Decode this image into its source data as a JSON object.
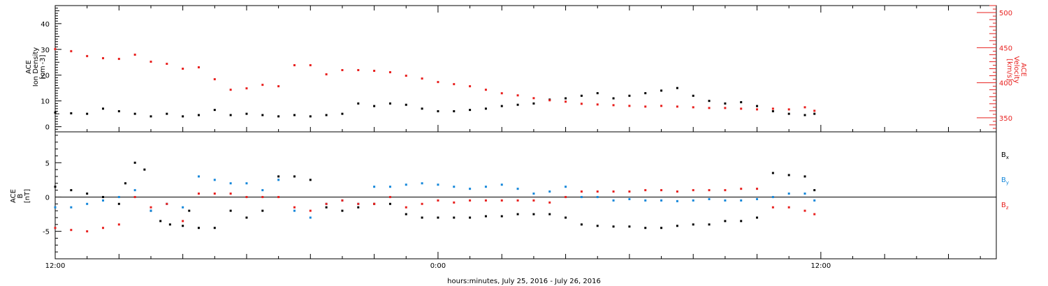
{
  "chart_data": [
    {
      "type": "scatter",
      "title": "",
      "ylabel": "ACE Ion Density [cm^-3]",
      "ylabel_lines": [
        "ACE",
        "Ion Density",
        "[cm",
        "-3",
        "]"
      ],
      "ylim": [
        -2,
        47
      ],
      "yticks": [
        0,
        10,
        20,
        30,
        40
      ],
      "y2label": "ACE Velocity [km/s]",
      "y2label_lines": [
        "ACE",
        "Velocity",
        "[km/s]"
      ],
      "y2lim": [
        330,
        510
      ],
      "y2ticks": [
        350,
        400,
        450,
        500
      ],
      "grid": false,
      "series": [
        {
          "name": "Ion Density",
          "color": "#000000",
          "axis": "left",
          "x": [
            0,
            0.5,
            1,
            1.5,
            2,
            2.5,
            3,
            3.5,
            4,
            4.5,
            5,
            5.5,
            6,
            6.5,
            7,
            7.5,
            8,
            8.5,
            9,
            9.5,
            10,
            10.5,
            11,
            11.5,
            12,
            12.5,
            13,
            13.5,
            14,
            14.5,
            15,
            15.5,
            16,
            16.5,
            17,
            17.5,
            18,
            18.5,
            19,
            19.5,
            20,
            20.5,
            21,
            21.5,
            22,
            22.5,
            23,
            23.5,
            23.8
          ],
          "y": [
            5.5,
            5.2,
            5.0,
            7.0,
            6.0,
            5.0,
            4.0,
            5.0,
            4.0,
            4.5,
            6.5,
            4.5,
            5.0,
            4.5,
            4.0,
            4.5,
            4.0,
            4.5,
            5.0,
            9.0,
            8.0,
            9.0,
            8.5,
            7.0,
            6.0,
            6.0,
            6.5,
            7.0,
            8.0,
            8.5,
            9.0,
            10.5,
            11.0,
            12.0,
            13.0,
            11.0,
            12.0,
            13.0,
            14.0,
            15.0,
            12.0,
            10.0,
            9.0,
            9.5,
            8.0,
            6.0,
            5.0,
            4.5,
            5.0
          ]
        },
        {
          "name": "Velocity",
          "color": "#e8201e",
          "axis": "right",
          "x": [
            0,
            0.5,
            1,
            1.5,
            2,
            2.5,
            3,
            3.5,
            4,
            4.5,
            5,
            5.5,
            6,
            6.5,
            7,
            7.5,
            8,
            8.5,
            9,
            9.5,
            10,
            10.5,
            11,
            11.5,
            12,
            12.5,
            13,
            13.5,
            14,
            14.5,
            15,
            15.5,
            16,
            16.5,
            17,
            17.5,
            18,
            18.5,
            19,
            19.5,
            20,
            20.5,
            21,
            21.5,
            22,
            22.5,
            23,
            23.5,
            23.8
          ],
          "y": [
            448,
            445,
            438,
            435,
            434,
            440,
            430,
            427,
            420,
            422,
            405,
            390,
            392,
            397,
            395,
            425,
            425,
            412,
            418,
            418,
            417,
            415,
            410,
            406,
            401,
            398,
            395,
            390,
            385,
            382,
            378,
            375,
            373,
            370,
            369,
            368,
            367,
            366,
            367,
            366,
            365,
            364,
            364,
            363,
            362,
            363,
            362,
            365,
            360
          ]
        }
      ]
    },
    {
      "type": "scatter",
      "title": "",
      "ylabel": "ACE B [nT]",
      "ylabel_lines": [
        "ACE",
        "B",
        "[nT]"
      ],
      "ylim": [
        -9,
        9.5
      ],
      "yticks": [
        -5,
        0,
        5
      ],
      "zero_line": true,
      "grid": false,
      "xlabel": "hours:minutes, July 25, 2016 - July 26, 2016",
      "xticks": [
        "12:00",
        "0:00",
        "12:00"
      ],
      "xtick_hours": [
        0,
        12,
        24
      ],
      "xlim_hours": [
        0,
        29.5
      ],
      "series": [
        {
          "name": "Bx",
          "legend_base": "B",
          "legend_sub": "x",
          "color": "#000000",
          "x": [
            0,
            0.5,
            1,
            1.5,
            2,
            2.2,
            2.5,
            2.8,
            3,
            3.3,
            3.6,
            4,
            4.2,
            4.5,
            5,
            5.5,
            6,
            6.5,
            7,
            7.5,
            8,
            8.5,
            9,
            9.5,
            10,
            10.5,
            11,
            11.5,
            12,
            12.5,
            13,
            13.5,
            14,
            14.5,
            15,
            15.5,
            16,
            16.5,
            17,
            17.5,
            18,
            18.5,
            19,
            19.5,
            20,
            20.5,
            21,
            21.5,
            22,
            22.5,
            23,
            23.5,
            23.8
          ],
          "y": [
            1.5,
            1.0,
            0.5,
            0.0,
            -1.0,
            2.0,
            5.0,
            4.0,
            -2.0,
            -3.5,
            -4.0,
            -4.2,
            -2.0,
            -4.5,
            -4.5,
            -2.0,
            -3.0,
            -2.0,
            3.0,
            3.0,
            2.5,
            -1.5,
            -2.0,
            -1.5,
            -1.0,
            -1.0,
            -2.5,
            -3.0,
            -3.0,
            -3.0,
            -3.0,
            -2.8,
            -2.8,
            -2.5,
            -2.5,
            -2.5,
            -3.0,
            -4.0,
            -4.2,
            -4.3,
            -4.3,
            -4.5,
            -4.5,
            -4.2,
            -4.0,
            -4.0,
            -3.5,
            -3.5,
            -3.0,
            3.5,
            3.2,
            3.0,
            1.0
          ]
        },
        {
          "name": "By",
          "legend_base": "B",
          "legend_sub": "y",
          "color": "#1487da",
          "x": [
            0,
            0.5,
            1,
            1.5,
            2,
            2.5,
            3,
            3.5,
            4,
            4.5,
            5,
            5.5,
            6,
            6.5,
            7,
            7.5,
            8,
            8.5,
            9,
            9.5,
            10,
            10.5,
            11,
            11.5,
            12,
            12.5,
            13,
            13.5,
            14,
            14.5,
            15,
            15.5,
            16,
            16.5,
            17,
            17.5,
            18,
            18.5,
            19,
            19.5,
            20,
            20.5,
            21,
            21.5,
            22,
            22.5,
            23,
            23.5,
            23.8
          ],
          "y": [
            -1.5,
            -1.5,
            -1.0,
            -0.5,
            0.0,
            1.0,
            -2.0,
            -1.0,
            -1.5,
            3.0,
            2.5,
            2.0,
            2.0,
            1.0,
            2.5,
            -2.0,
            -3.0,
            -1.0,
            -0.5,
            -1.0,
            1.5,
            1.5,
            1.8,
            2.0,
            1.8,
            1.5,
            1.2,
            1.5,
            1.8,
            1.2,
            0.5,
            0.8,
            1.5,
            0.0,
            0.0,
            -0.5,
            -0.3,
            -0.5,
            -0.5,
            -0.6,
            -0.5,
            -0.3,
            -0.5,
            -0.5,
            -0.3,
            0.0,
            0.5,
            0.5,
            -0.5
          ]
        },
        {
          "name": "Bz",
          "legend_base": "B",
          "legend_sub": "z",
          "color": "#e8201e",
          "x": [
            0,
            0.5,
            1,
            1.5,
            2,
            2.5,
            3,
            3.5,
            4,
            4.5,
            5,
            5.5,
            6,
            6.5,
            7,
            7.5,
            8,
            8.5,
            9,
            9.5,
            10,
            10.5,
            11,
            11.5,
            12,
            12.5,
            13,
            13.5,
            14,
            14.5,
            15,
            15.5,
            16,
            16.5,
            17,
            17.5,
            18,
            18.5,
            19,
            19.5,
            20,
            20.5,
            21,
            21.5,
            22,
            22.5,
            23,
            23.5,
            23.8
          ],
          "y": [
            -4.5,
            -4.8,
            -5.0,
            -4.5,
            -4.0,
            0.0,
            -1.5,
            -1.0,
            -3.5,
            0.5,
            0.5,
            0.5,
            0.0,
            0.0,
            0.0,
            -1.5,
            -2.0,
            -1.0,
            -0.5,
            -1.0,
            -1.0,
            0.0,
            -1.5,
            -1.0,
            -0.5,
            -0.8,
            -0.5,
            -0.5,
            -0.5,
            -0.5,
            -0.5,
            -0.8,
            0.0,
            0.8,
            0.8,
            0.8,
            0.8,
            1.0,
            1.0,
            0.8,
            1.0,
            1.0,
            1.0,
            1.2,
            1.2,
            -1.5,
            -1.5,
            -2.0,
            -2.5
          ]
        }
      ]
    }
  ]
}
